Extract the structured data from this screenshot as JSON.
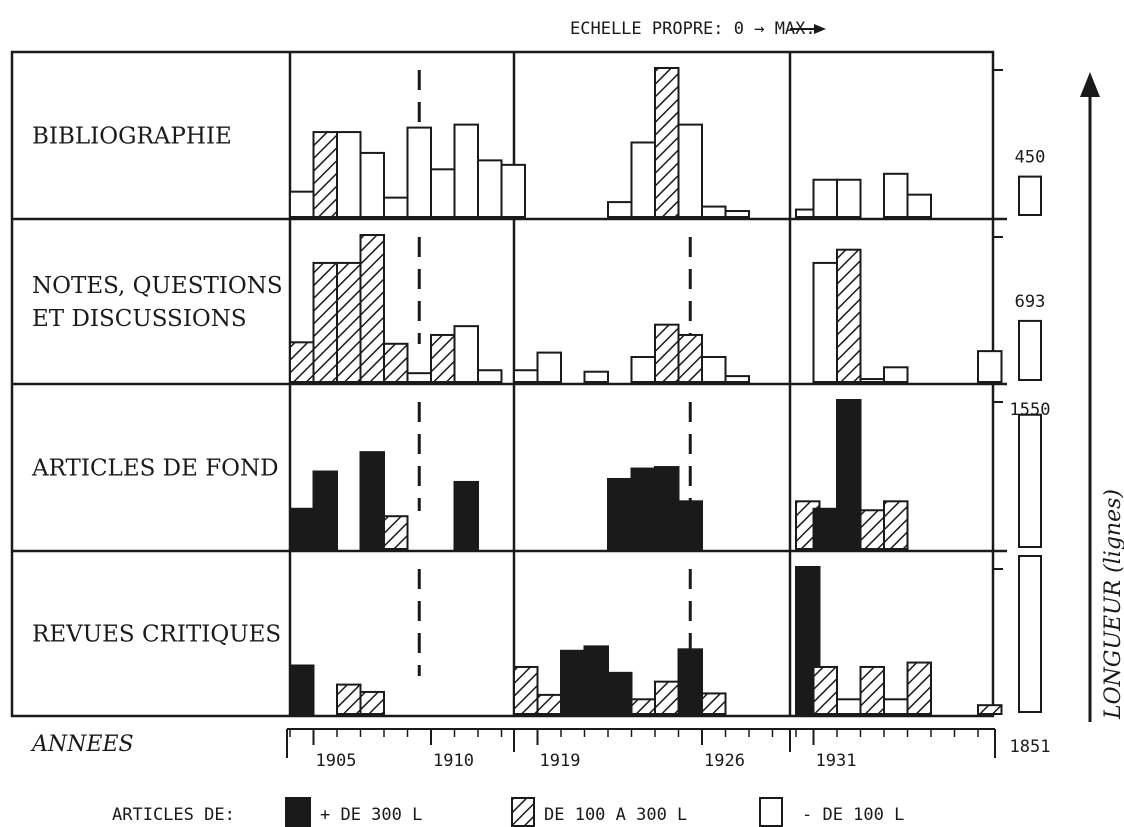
{
  "chart_data": {
    "type": "bar",
    "header": "ECHELLE PROPRE: 0 → MAX.",
    "years_label": "ANNEES",
    "ylabel": "LONGUEUR (lignes)",
    "legend_title": "ARTICLES DE:",
    "legend": [
      {
        "key": "big",
        "label": "+ DE 300 L",
        "fill": "#1a1a1a"
      },
      {
        "key": "mid",
        "label": "DE 100 A 300 L",
        "fill": "hatched"
      },
      {
        "key": "small",
        "label": "- DE 100 L",
        "fill": "#ffffff"
      }
    ],
    "periods": [
      {
        "start": 1904,
        "end": 1913,
        "ticks": [
          1905,
          1910
        ],
        "dashed_marker": 1909.5
      },
      {
        "start": 1918,
        "end": 1929,
        "ticks": [
          1919,
          1926
        ],
        "dashed_marker": 1925.5
      },
      {
        "start": 1930,
        "end": 1940,
        "ticks": [
          1931
        ]
      }
    ],
    "tick_labels": [
      "1905",
      "1910",
      "1919",
      "1926",
      "1931"
    ],
    "rows": [
      {
        "name": "BIBLIOGRAPHIE",
        "total": "450",
        "total_fraction": 0.243,
        "bars": [
          [
            1904,
            0.17,
            "small"
          ],
          [
            1905,
            0.57,
            "mid"
          ],
          [
            1906,
            0.57,
            "small"
          ],
          [
            1907,
            0.43,
            "small"
          ],
          [
            1908,
            0.13,
            "small"
          ],
          [
            1909,
            0.6,
            "small"
          ],
          [
            1910,
            0.32,
            "small"
          ],
          [
            1911,
            0.62,
            "small"
          ],
          [
            1912,
            0.38,
            "small"
          ],
          [
            1913,
            0.35,
            "small"
          ],
          [
            1922,
            0.1,
            "small"
          ],
          [
            1923,
            0.5,
            "small"
          ],
          [
            1924,
            1.0,
            "mid"
          ],
          [
            1925,
            0.62,
            "small"
          ],
          [
            1926,
            0.07,
            "small"
          ],
          [
            1927,
            0.04,
            "small"
          ],
          [
            1930,
            0.05,
            "small"
          ],
          [
            1931,
            0.25,
            "small"
          ],
          [
            1932,
            0.25,
            "small"
          ],
          [
            1934,
            0.29,
            "small"
          ],
          [
            1935,
            0.15,
            "small"
          ]
        ]
      },
      {
        "name": "NOTES, QUESTIONS\nET DISCUSSIONS",
        "total": "693",
        "total_fraction": 0.374,
        "bars": [
          [
            1904,
            0.27,
            "mid"
          ],
          [
            1905,
            0.81,
            "mid"
          ],
          [
            1906,
            0.81,
            "mid"
          ],
          [
            1907,
            1.0,
            "mid"
          ],
          [
            1908,
            0.26,
            "mid"
          ],
          [
            1909,
            0.06,
            "small"
          ],
          [
            1910,
            0.32,
            "mid"
          ],
          [
            1911,
            0.38,
            "small"
          ],
          [
            1912,
            0.08,
            "small"
          ],
          [
            1918,
            0.08,
            "small"
          ],
          [
            1919,
            0.2,
            "small"
          ],
          [
            1921,
            0.07,
            "small"
          ],
          [
            1923,
            0.17,
            "small"
          ],
          [
            1924,
            0.39,
            "mid"
          ],
          [
            1925,
            0.32,
            "mid"
          ],
          [
            1926,
            0.17,
            "small"
          ],
          [
            1927,
            0.04,
            "small"
          ],
          [
            1931,
            0.81,
            "small"
          ],
          [
            1932,
            0.9,
            "mid"
          ],
          [
            1933,
            0.02,
            "small"
          ],
          [
            1934,
            0.1,
            "small"
          ],
          [
            1938,
            0.21,
            "small"
          ]
        ]
      },
      {
        "name": "ARTICLES DE FOND",
        "total": "1550",
        "total_fraction": 0.837,
        "bars": [
          [
            1904,
            0.27,
            "big"
          ],
          [
            1905,
            0.52,
            "big"
          ],
          [
            1907,
            0.65,
            "big"
          ],
          [
            1908,
            0.22,
            "mid"
          ],
          [
            1911,
            0.45,
            "big"
          ],
          [
            1922,
            0.47,
            "big"
          ],
          [
            1923,
            0.54,
            "big"
          ],
          [
            1924,
            0.55,
            "big"
          ],
          [
            1925,
            0.32,
            "big"
          ],
          [
            1930,
            0.32,
            "mid"
          ],
          [
            1931,
            0.27,
            "big"
          ],
          [
            1932,
            1.0,
            "big"
          ],
          [
            1933,
            0.26,
            "mid"
          ],
          [
            1934,
            0.32,
            "mid"
          ]
        ]
      },
      {
        "name": "REVUES CRITIQUES",
        "total": "1851",
        "total_fraction": 1.0,
        "bars": [
          [
            1904,
            0.33,
            "big"
          ],
          [
            1906,
            0.2,
            "mid"
          ],
          [
            1907,
            0.15,
            "mid"
          ],
          [
            1918,
            0.32,
            "mid"
          ],
          [
            1919,
            0.13,
            "mid"
          ],
          [
            1920,
            0.43,
            "big"
          ],
          [
            1921,
            0.46,
            "big"
          ],
          [
            1922,
            0.28,
            "big"
          ],
          [
            1923,
            0.1,
            "mid"
          ],
          [
            1924,
            0.22,
            "mid"
          ],
          [
            1925,
            0.44,
            "big"
          ],
          [
            1926,
            0.14,
            "mid"
          ],
          [
            1930,
            1.0,
            "big"
          ],
          [
            1931,
            0.32,
            "mid"
          ],
          [
            1932,
            0.1,
            "small"
          ],
          [
            1933,
            0.32,
            "mid"
          ],
          [
            1934,
            0.1,
            "small"
          ],
          [
            1935,
            0.35,
            "mid"
          ],
          [
            1938,
            0.06,
            "mid"
          ]
        ]
      }
    ]
  }
}
